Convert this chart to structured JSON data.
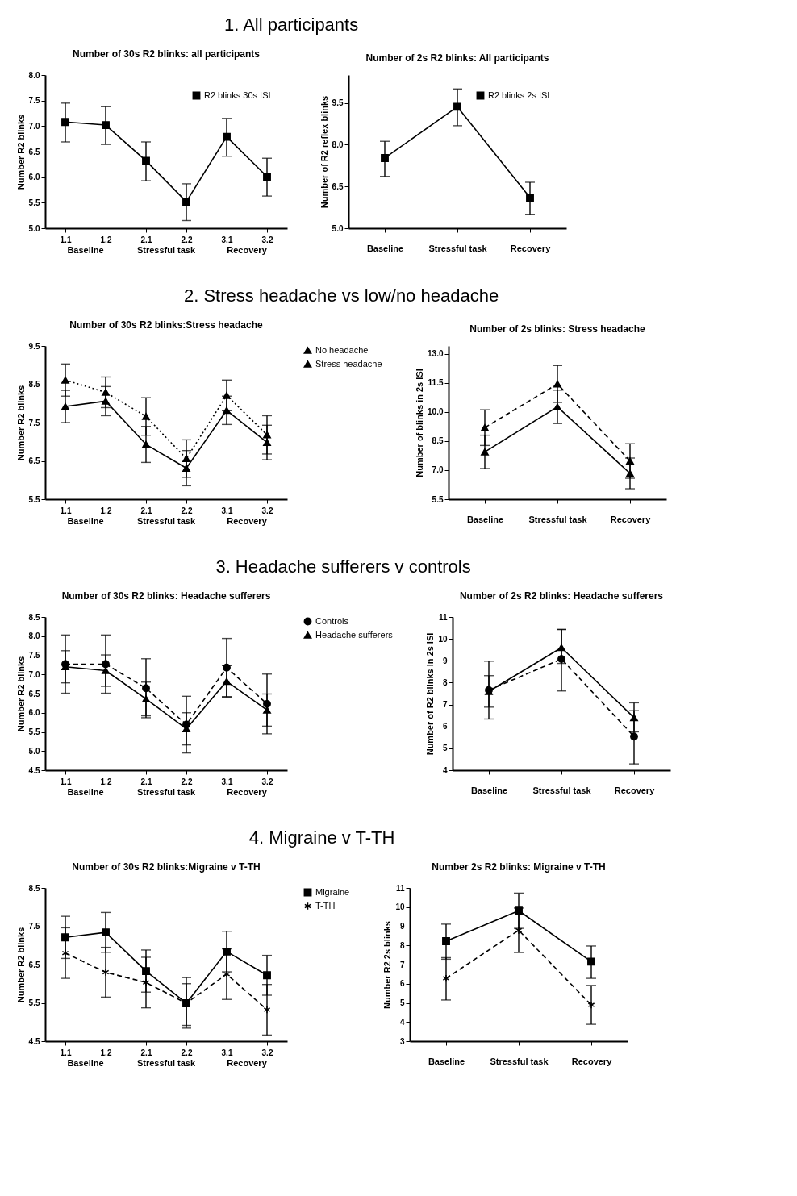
{
  "chart_data": [
    {
      "type": "line",
      "title": "Number of 30s R2 blinks: all participants",
      "ylabel": "Number R2 blinks",
      "annotations": [
        "1. All participants",
        "Baseline",
        "Stressful task",
        "Recovery"
      ],
      "categories": [
        "1.1",
        "1.2",
        "2.1",
        "2.2",
        "3.1",
        "3.2"
      ],
      "ylim": [
        5,
        8
      ],
      "yticks": [
        {
          "value": 5,
          "label": "5.0"
        },
        5.5,
        {
          "value": 6,
          "label": "6.0"
        },
        6.5,
        {
          "value": 7,
          "label": "7.0"
        },
        7.5,
        {
          "value": 8,
          "label": "8.0"
        }
      ],
      "legend": "top right",
      "grid": false,
      "series": [
        {
          "name": "R2 blinks 30s ISI",
          "color": "#000000",
          "marker": "square",
          "line_style": "solid",
          "values": [
            7.08,
            7.02,
            6.32,
            5.52,
            6.79,
            6.01
          ],
          "errors": [
            [
              6.69,
              7.45
            ],
            [
              6.64,
              7.38
            ],
            [
              5.93,
              6.69
            ],
            [
              5.15,
              5.87
            ],
            [
              6.41,
              7.15
            ],
            [
              5.63,
              6.37
            ]
          ]
        }
      ]
    },
    {
      "type": "line",
      "title": "Number of 2s R2 blinks: All participants",
      "ylabel": "Number of R2 reflex blinks",
      "categories": [
        "Baseline",
        "Stressful task",
        "Recovery"
      ],
      "ylim": [
        5,
        10.5
      ],
      "yticks": [
        {
          "value": 5,
          "label": "5.0"
        },
        6.5,
        {
          "value": 8,
          "label": "8.0"
        },
        9.5
      ],
      "legend": "top right",
      "grid": false,
      "series": [
        {
          "name": "R2 blinks 2s ISI",
          "color": "#000000",
          "marker": "square",
          "line_style": "solid",
          "values": [
            7.52,
            9.36,
            6.1
          ],
          "errors": [
            [
              6.86,
              8.12
            ],
            [
              8.68,
              10.0
            ],
            [
              5.5,
              6.65
            ]
          ]
        }
      ]
    },
    {
      "type": "line",
      "title": "Number of 30s R2 blinks:Stress headache",
      "ylabel": "Number R2 blinks",
      "annotations": [
        "2. Stress headache vs low/no headache",
        "Baseline",
        "Stressful task",
        "Recovery"
      ],
      "categories": [
        "1.1",
        "1.2",
        "2.1",
        "2.2",
        "3.1",
        "3.2"
      ],
      "ylim": [
        5.5,
        9.5
      ],
      "yticks": [
        5.5,
        6.5,
        7.5,
        8.5,
        9.5
      ],
      "legend": "right",
      "grid": false,
      "series": [
        {
          "name": "No headache",
          "color": "#000000",
          "marker": "triangle",
          "line_style": "dotted",
          "values": [
            8.61,
            8.29,
            7.66,
            6.56,
            8.21,
            7.18
          ],
          "errors": [
            0.42,
            0.4,
            0.49,
            0.49,
            0.4,
            0.5
          ]
        },
        {
          "name": "Stress headache",
          "color": "#000000",
          "marker": "triangle",
          "line_style": "solid",
          "values": [
            7.92,
            8.06,
            6.93,
            6.31,
            7.82,
            6.98
          ],
          "errors": [
            0.42,
            0.38,
            0.47,
            0.46,
            0.37,
            0.45
          ]
        }
      ]
    },
    {
      "type": "line",
      "title": "Number of 2s blinks: Stress headache",
      "ylabel": "Number of blinks in 2s ISI",
      "categories": [
        "Baseline",
        "Stressful task",
        "Recovery"
      ],
      "ylim": [
        5.5,
        13.4
      ],
      "yticks": [
        5.5,
        {
          "value": 7,
          "label": "7.0"
        },
        8.5,
        {
          "value": 10,
          "label": "10.0"
        },
        11.5,
        {
          "value": 13,
          "label": "13.0"
        }
      ],
      "series": [
        {
          "color": "#000000",
          "marker": "triangle",
          "line_style": "dashed",
          "values": [
            9.19,
            11.44,
            7.47
          ],
          "errors": [
            0.92,
            0.95,
            0.89
          ]
        },
        {
          "color": "#000000",
          "marker": "triangle",
          "line_style": "solid",
          "values": [
            7.94,
            10.26,
            6.83
          ],
          "errors": [
            0.86,
            0.86,
            0.79
          ]
        }
      ]
    },
    {
      "type": "line",
      "title": "Number of 30s R2 blinks: Headache sufferers",
      "ylabel": "Number R2 blinks",
      "annotations": [
        "3. Headache sufferers v controls",
        "Baseline",
        "Stressful task",
        "Recovery"
      ],
      "categories": [
        "1.1",
        "1.2",
        "2.1",
        "2.2",
        "3.1",
        "3.2"
      ],
      "ylim": [
        4.5,
        8.5
      ],
      "yticks": [
        4.5,
        {
          "value": 5,
          "label": "5.0"
        },
        5.5,
        {
          "value": 6,
          "label": "6.0"
        },
        6.5,
        {
          "value": 7,
          "label": "7.0"
        },
        7.5,
        {
          "value": 8,
          "label": "8.0"
        },
        8.5
      ],
      "legend": "right",
      "series": [
        {
          "name": "Controls",
          "color": "#000000",
          "marker": "circle",
          "line_style": "dashed",
          "values": [
            7.27,
            7.27,
            6.64,
            5.69,
            7.18,
            6.23
          ],
          "errors": [
            0.76,
            0.76,
            0.77,
            0.74,
            0.76,
            0.78
          ]
        },
        {
          "name": "Headache sufferers",
          "color": "#000000",
          "marker": "triangle",
          "line_style": "solid",
          "values": [
            7.2,
            7.1,
            6.36,
            5.58,
            6.82,
            6.07
          ],
          "errors": [
            0.42,
            0.41,
            0.44,
            0.42,
            0.41,
            0.42
          ]
        }
      ]
    },
    {
      "type": "line",
      "title": "Number of 2s R2 blinks: Headache sufferers",
      "ylabel": "Number of R2 blinks in 2s ISI",
      "categories": [
        "Baseline",
        "Stressful task",
        "Recovery"
      ],
      "ylim": [
        4,
        11
      ],
      "yticks": [
        4,
        5,
        6,
        7,
        8,
        9,
        10,
        11
      ],
      "series": [
        {
          "color": "#000000",
          "marker": "circle",
          "line_style": "dashed",
          "values": [
            7.66,
            9.08,
            5.54
          ],
          "errors": [
            1.32,
            [
              7.62,
              10.43
            ],
            [
              4.29,
              6.72
            ]
          ]
        },
        {
          "color": "#000000",
          "marker": "triangle",
          "line_style": "solid",
          "values": [
            7.6,
            9.6,
            6.4
          ],
          "errors": [
            0.72,
            [
              8.88,
              10.43
            ],
            [
              5.75,
              7.08
            ]
          ]
        }
      ]
    },
    {
      "type": "line",
      "title": "Number of 30s R2 blinks:Migraine v T-TH",
      "ylabel": "Number R2 blinks",
      "annotations": [
        "4. Migraine v T-TH",
        "Baseline",
        "Stressful task",
        "Recovery"
      ],
      "categories": [
        "1.1",
        "1.2",
        "2.1",
        "2.2",
        "3.1",
        "3.2"
      ],
      "ylim": [
        4.5,
        8.5
      ],
      "yticks": [
        4.5,
        5.5,
        6.5,
        7.5,
        8.5
      ],
      "legend": "right",
      "grid": false,
      "series": [
        {
          "name": "Migraine",
          "color": "#000000",
          "marker": "square",
          "line_style": "solid",
          "values": [
            7.21,
            7.34,
            6.33,
            5.49,
            6.84,
            6.22
          ],
          "errors": [
            0.55,
            0.52,
            0.55,
            [
              4.84,
              6.16
            ],
            0.53,
            0.52
          ]
        },
        {
          "name": "T-TH",
          "color": "#000000",
          "marker": "cross",
          "line_style": "dashed",
          "values": [
            6.8,
            6.3,
            6.03,
            5.49,
            6.25,
            5.32
          ],
          "errors": [
            0.66,
            0.65,
            0.66,
            [
              4.91,
              6.0
            ],
            0.66,
            0.66
          ]
        }
      ]
    },
    {
      "type": "line",
      "title": "Number 2s R2 blinks: Migraine v T-TH",
      "ylabel": "Number R2 2s blinks",
      "categories": [
        "Baseline",
        "Stressful task",
        "Recovery"
      ],
      "ylim": [
        3,
        11
      ],
      "yticks": [
        3,
        4,
        5,
        6,
        7,
        8,
        9,
        10,
        11
      ],
      "series": [
        {
          "color": "#000000",
          "marker": "square",
          "line_style": "solid",
          "values": [
            8.22,
            9.81,
            7.15
          ],
          "errors": [
            [
              7.28,
              9.11
            ],
            [
              8.89,
              10.73
            ],
            [
              6.28,
              7.97
            ]
          ]
        },
        {
          "color": "#000000",
          "marker": "cross",
          "line_style": "dashed",
          "values": [
            6.28,
            8.79,
            4.89
          ],
          "errors": [
            [
              5.15,
              7.36
            ],
            [
              7.63,
              9.95
            ],
            [
              3.88,
              5.91
            ]
          ]
        }
      ]
    }
  ]
}
